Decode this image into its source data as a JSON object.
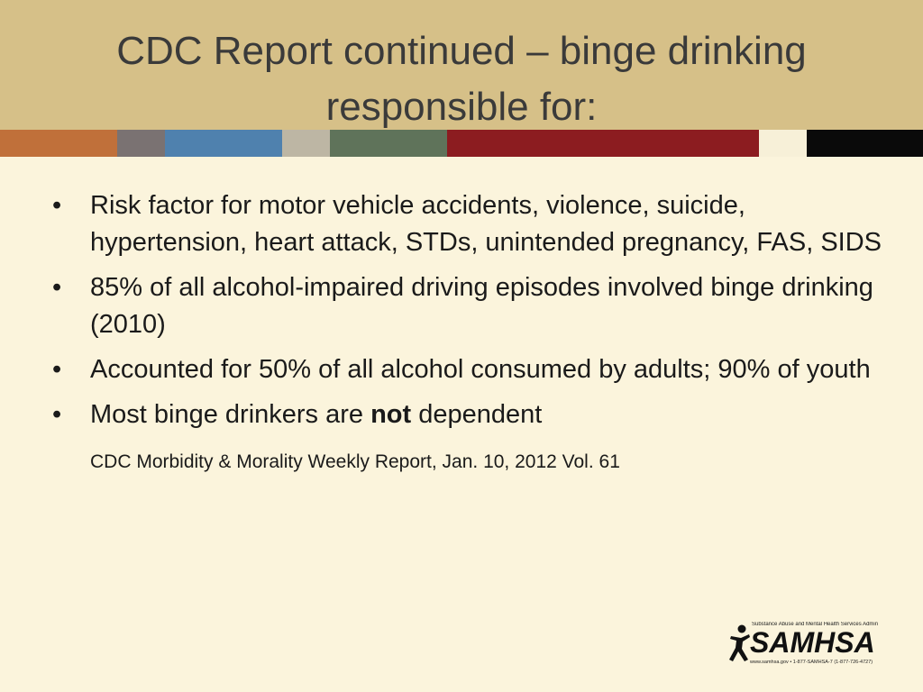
{
  "slide": {
    "title_line1": "CDC Report continued – binge drinking",
    "title_line2": "responsible for:",
    "bullets": [
      {
        "text": "Risk factor for motor vehicle accidents, violence, suicide, hypertension, heart attack, STDs, unintended pregnancy, FAS, SIDS"
      },
      {
        "text": "85% of all alcohol-impaired driving episodes involved binge drinking (2010)"
      },
      {
        "text": "Accounted for 50% of all alcohol consumed by adults; 90% of youth"
      },
      {
        "text_before": "Most binge drinkers are ",
        "text_bold": "not",
        "text_after": " dependent"
      }
    ],
    "bullet_glyph": "•",
    "citation": "CDC Morbidity & Morality Weekly Report, Jan. 10, 2012 Vol. 61"
  },
  "logo": {
    "top_line": "Substance Abuse and Mental Health Services Administration",
    "wordmark": "SAMHSA",
    "bottom_line": "www.samhsa.gov • 1-877-SAMHSA-7 (1-877-726-4727)",
    "icon": "person-figure-icon"
  },
  "colors": {
    "background": "#fbf4dc",
    "header": "#d6c088",
    "stripe": [
      "#c0703a",
      "#7a7272",
      "#4f81ae",
      "#bdb6a4",
      "#5f735a",
      "#8c1c20",
      "#f7f0d8",
      "#0a0a0a"
    ]
  }
}
